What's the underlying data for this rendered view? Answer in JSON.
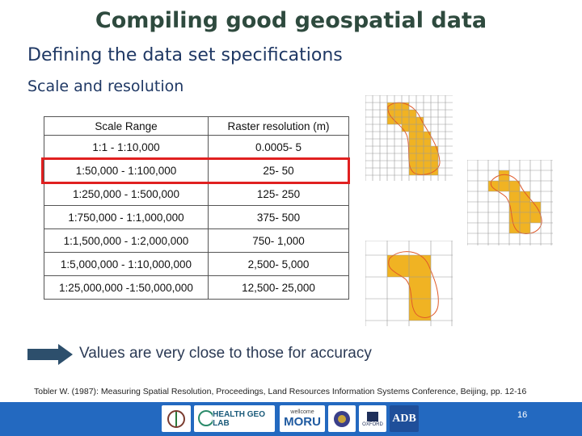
{
  "title": "Compiling good geospatial data",
  "subtitle": "Defining the data set specifications",
  "section": "Scale and resolution",
  "table": {
    "headers": [
      "Scale Range",
      "Raster resolution (m)"
    ],
    "rows": [
      [
        "1:1 - 1:10,000",
        "0.0005- 5"
      ],
      [
        "1:50,000 - 1:100,000",
        "25- 50"
      ],
      [
        "1:250,000 - 1:500,000",
        "125- 250"
      ],
      [
        "1:750,000 - 1:1,000,000",
        "375- 500"
      ],
      [
        "1:1,500,000 - 1:2,000,000",
        "750- 1,000"
      ],
      [
        "1:5,000,000 - 1:10,000,000",
        "2,500- 5,000"
      ],
      [
        "1:25,000,000 -1:50,000,000",
        "12,500- 25,000"
      ]
    ],
    "highlighted_row": 1,
    "highlight_color": "#e02020"
  },
  "note": "Values are very close to those for accuracy",
  "citation": "Tobler W. (1987): Measuring Spatial Resolution, Proceedings, Land Resources Information Systems Conference, Beijing, pp. 12-16",
  "footer": {
    "logos": {
      "health_geolab": "HEALTH GEO LAB",
      "wellcome": "wellcome",
      "moru": "MORU",
      "oxford": "OXFORD",
      "adb": "ADB"
    },
    "page_number": "16",
    "color": "#2369c0"
  },
  "colors": {
    "shape_fill": "#f0b323",
    "outline": "#e05a2a",
    "arrow": "#2d4f6c"
  }
}
